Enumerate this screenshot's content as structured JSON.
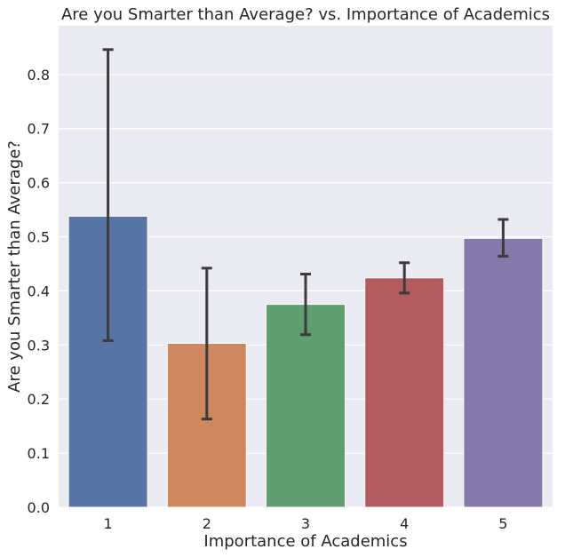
{
  "chart_data": {
    "type": "bar",
    "title": "Are you Smarter than Average? vs. Importance of Academics",
    "xlabel": "Importance of Academics",
    "ylabel": "Are you Smarter than Average?",
    "categories": [
      "1",
      "2",
      "3",
      "4",
      "5"
    ],
    "values": [
      0.538,
      0.303,
      0.375,
      0.424,
      0.497
    ],
    "error_low": [
      0.308,
      0.163,
      0.319,
      0.396,
      0.464
    ],
    "error_high": [
      0.846,
      0.442,
      0.431,
      0.452,
      0.532
    ],
    "colors": [
      "#5874a4",
      "#cf875f",
      "#5f9e6e",
      "#b45b5f",
      "#8579ab"
    ],
    "ylim": [
      0,
      0.89
    ],
    "yticks": [
      "0.0",
      "0.1",
      "0.2",
      "0.3",
      "0.4",
      "0.5",
      "0.6",
      "0.7",
      "0.8"
    ],
    "grid": true,
    "background": "#eaeaf2",
    "errorbar_color": "#3b3b3b"
  }
}
